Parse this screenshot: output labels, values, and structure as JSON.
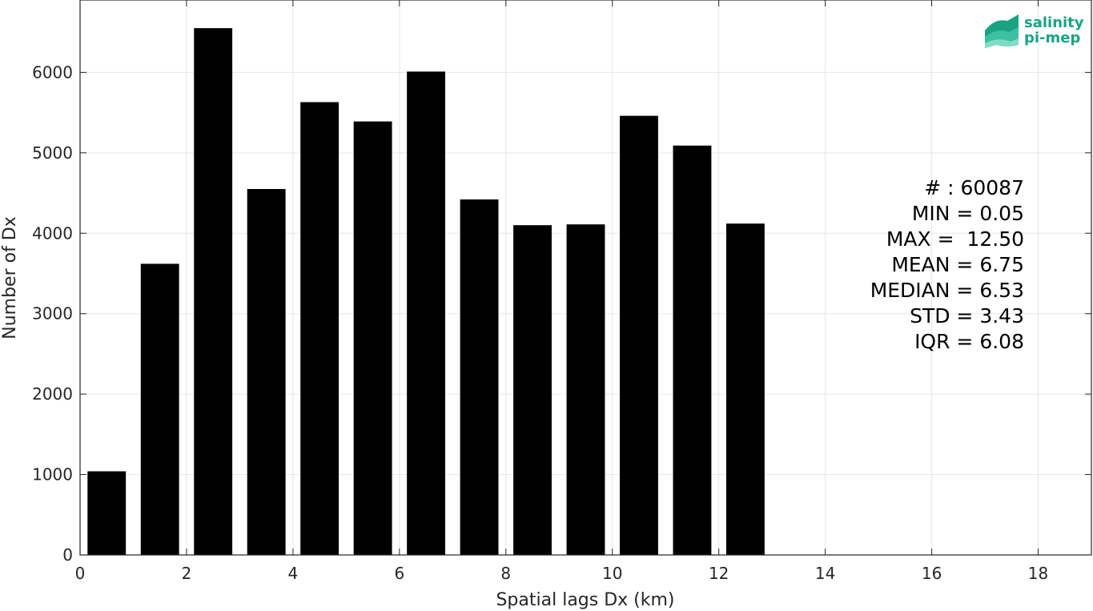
{
  "chart_data": {
    "type": "bar",
    "xlabel": "Spatial lags Dx (km)",
    "ylabel": "Number of Dx",
    "xlim": [
      0,
      19
    ],
    "ylim": [
      0,
      6900
    ],
    "grid": true,
    "bar_color": "#000000",
    "x_ticks": [
      0,
      2,
      4,
      6,
      8,
      10,
      12,
      14,
      16,
      18
    ],
    "y_ticks": [
      0,
      1000,
      2000,
      3000,
      4000,
      5000,
      6000
    ],
    "bar_width": 0.72,
    "x": [
      0.5,
      1.5,
      2.5,
      3.5,
      4.5,
      5.5,
      6.5,
      7.5,
      8.5,
      9.5,
      10.5,
      11.5,
      12.5
    ],
    "values": [
      1040,
      3620,
      6550,
      4550,
      5630,
      5390,
      6010,
      4420,
      4100,
      4110,
      5460,
      5090,
      4120
    ]
  },
  "stats": [
    "# : 60087",
    "MIN = 0.05",
    "MAX =  12.50",
    "MEAN = 6.75",
    "MEDIAN = 6.53",
    "STD = 3.43",
    "IQR = 6.08"
  ],
  "logo": {
    "line1": "salinity",
    "line2": "pi-mep",
    "color": "#1aa383"
  }
}
